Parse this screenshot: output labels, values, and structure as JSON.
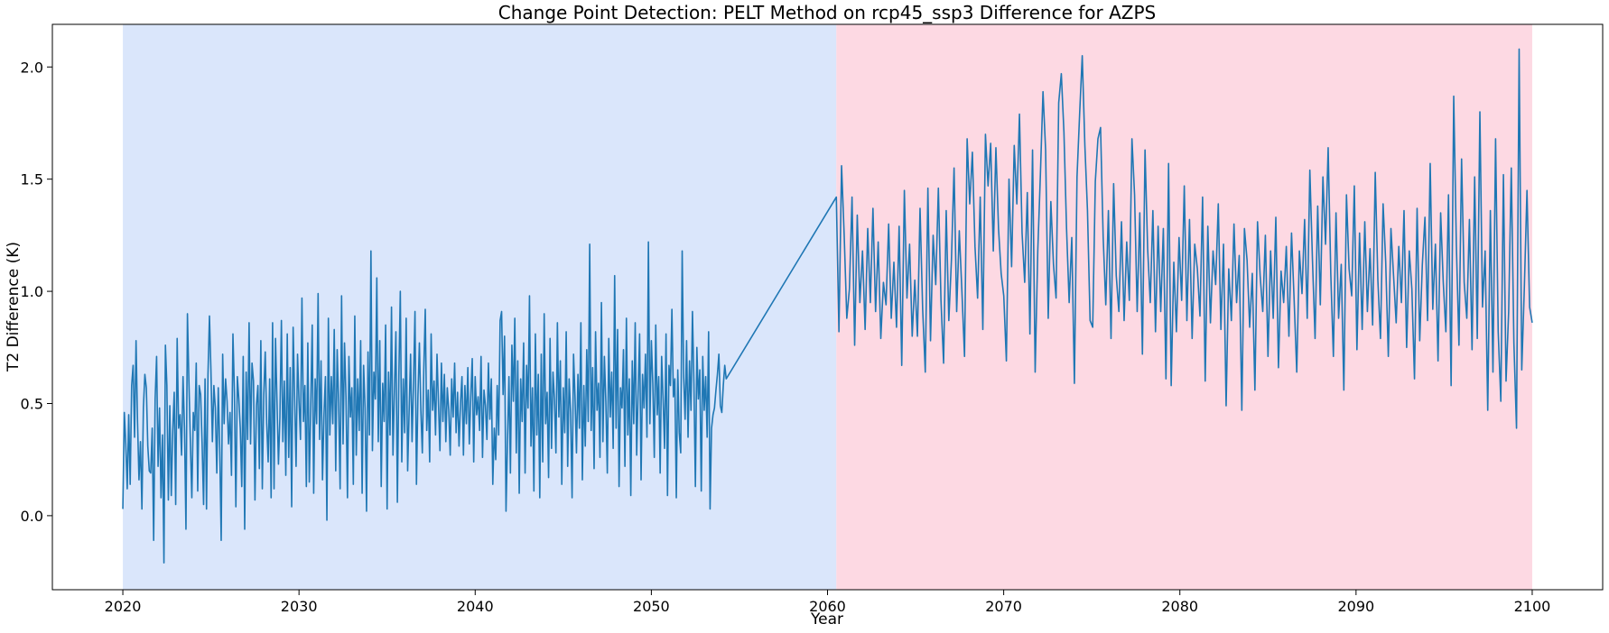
{
  "chart_data": {
    "type": "line",
    "title": "Change Point Detection: PELT Method on rcp45_ssp3 Difference for AZPS",
    "xlabel": "Year",
    "ylabel": "T2 Difference (K)",
    "xlim": [
      2016.0,
      2104.0
    ],
    "ylim": [
      -0.33,
      2.19
    ],
    "x_ticks": [
      2020,
      2030,
      2040,
      2050,
      2060,
      2070,
      2080,
      2090,
      2100
    ],
    "y_ticks": [
      0.0,
      0.5,
      1.0,
      1.5,
      2.0
    ],
    "y_tick_labels": [
      "0.0",
      "0.5",
      "1.0",
      "1.5",
      "2.0"
    ],
    "grid": false,
    "regions": [
      {
        "x_start": 2020.0,
        "x_end": 2060.5,
        "color": "#dae6fb"
      },
      {
        "x_start": 2060.5,
        "x_end": 2100.0,
        "color": "#fdd9e3"
      }
    ],
    "series": [
      {
        "color": "#1f77b4",
        "x_start": 2020.0,
        "x_step": 0.0833333,
        "values": [
          0.03,
          0.46,
          0.32,
          0.12,
          0.45,
          0.14,
          0.58,
          0.67,
          0.35,
          0.78,
          0.42,
          0.16,
          0.33,
          0.03,
          0.48,
          0.63,
          0.57,
          0.31,
          0.2,
          0.19,
          0.39,
          -0.11,
          0.52,
          0.71,
          0.22,
          0.48,
          0.08,
          0.36,
          -0.21,
          0.76,
          0.58,
          0.07,
          0.49,
          0.09,
          0.38,
          0.55,
          0.05,
          0.79,
          0.39,
          0.45,
          0.27,
          0.62,
          0.39,
          -0.06,
          0.9,
          0.6,
          0.33,
          0.08,
          0.46,
          0.38,
          0.68,
          0.11,
          0.58,
          0.54,
          0.32,
          0.05,
          0.61,
          0.03,
          0.63,
          0.89,
          0.65,
          0.33,
          0.58,
          0.48,
          0.19,
          0.57,
          0.3,
          -0.11,
          0.72,
          0.41,
          0.61,
          0.51,
          0.32,
          0.46,
          0.18,
          0.81,
          0.55,
          0.04,
          0.62,
          0.52,
          0.39,
          0.13,
          0.71,
          -0.06,
          0.64,
          0.34,
          0.86,
          0.32,
          0.68,
          0.6,
          0.07,
          0.49,
          0.58,
          0.21,
          0.78,
          0.12,
          0.54,
          0.73,
          0.41,
          0.24,
          0.61,
          0.08,
          0.86,
          0.12,
          0.79,
          0.51,
          0.23,
          0.44,
          0.87,
          0.33,
          0.6,
          0.18,
          0.81,
          0.26,
          0.66,
          0.04,
          0.84,
          0.53,
          0.22,
          0.72,
          0.51,
          0.34,
          0.97,
          0.42,
          0.58,
          0.13,
          0.77,
          0.15,
          0.49,
          0.85,
          0.1,
          0.61,
          0.41,
          0.99,
          0.34,
          0.69,
          0.16,
          0.45,
          0.62,
          -0.02,
          0.88,
          0.36,
          0.62,
          0.41,
          0.83,
          0.2,
          0.74,
          0.5,
          0.12,
          0.98,
          0.32,
          0.77,
          0.53,
          0.08,
          0.71,
          0.44,
          0.57,
          0.14,
          0.89,
          0.27,
          0.61,
          0.38,
          0.78,
          0.1,
          0.67,
          0.48,
          0.02,
          0.73,
          0.36,
          1.18,
          0.29,
          0.64,
          0.52,
          1.06,
          0.33,
          0.78,
          0.13,
          0.59,
          0.42,
          0.85,
          0.03,
          0.64,
          0.36,
          0.93,
          0.27,
          0.56,
          0.82,
          0.06,
          0.62,
          1.0,
          0.24,
          0.61,
          0.37,
          0.88,
          0.2,
          0.46,
          0.72,
          0.33,
          0.59,
          0.91,
          0.14,
          0.53,
          0.77,
          0.47,
          0.28,
          0.65,
          0.92,
          0.38,
          0.56,
          0.24,
          0.81,
          0.47,
          0.6,
          0.36,
          0.72,
          0.5,
          0.29,
          0.68,
          0.42,
          0.63,
          0.33,
          0.57,
          0.47,
          0.27,
          0.61,
          0.44,
          0.68,
          0.37,
          0.55,
          0.31,
          0.5,
          0.62,
          0.27,
          0.58,
          0.41,
          0.66,
          0.32,
          0.53,
          0.7,
          0.24,
          0.62,
          0.45,
          0.53,
          0.38,
          0.71,
          0.26,
          0.56,
          0.49,
          0.34,
          0.68,
          0.43,
          0.61,
          0.14,
          0.39,
          0.25,
          0.58,
          0.36,
          0.87,
          0.91,
          0.54,
          0.8,
          0.02,
          0.33,
          0.62,
          0.19,
          0.76,
          0.51,
          0.88,
          0.28,
          0.69,
          0.1,
          0.61,
          0.42,
          0.77,
          0.19,
          0.67,
          0.48,
          0.98,
          0.31,
          0.57,
          0.11,
          0.81,
          0.36,
          0.63,
          0.08,
          0.72,
          0.24,
          0.9,
          0.41,
          0.55,
          0.17,
          0.79,
          0.3,
          0.64,
          0.52,
          0.28,
          0.86,
          0.44,
          0.69,
          0.14,
          0.57,
          0.37,
          0.82,
          0.22,
          0.61,
          0.46,
          0.08,
          0.72,
          0.53,
          0.28,
          0.63,
          0.39,
          0.86,
          0.16,
          0.58,
          0.31,
          0.74,
          0.42,
          1.21,
          0.38,
          0.66,
          0.21,
          0.82,
          0.47,
          0.59,
          0.26,
          0.95,
          0.33,
          0.71,
          0.51,
          0.19,
          0.79,
          0.44,
          0.64,
          0.3,
          1.07,
          0.39,
          0.83,
          0.13,
          0.57,
          0.48,
          0.74,
          0.22,
          0.88,
          0.36,
          0.61,
          0.09,
          0.69,
          0.41,
          0.86,
          0.27,
          0.55,
          0.81,
          0.16,
          0.63,
          0.48,
          0.72,
          0.35,
          1.22,
          0.41,
          0.78,
          0.59,
          0.26,
          0.85,
          0.45,
          0.62,
          0.19,
          0.71,
          0.52,
          0.3,
          0.81,
          0.09,
          0.67,
          0.58,
          0.92,
          0.53,
          0.61,
          0.08,
          0.65,
          0.37,
          0.28,
          1.18,
          0.62,
          0.43,
          0.78,
          0.35,
          0.69,
          0.47,
          0.91,
          0.59,
          0.13,
          0.75,
          0.52,
          0.65,
          0.11,
          0.71,
          0.47,
          0.62,
          0.35,
          0.82,
          0.03,
          0.39,
          0.45,
          0.48,
          0.56,
          0.63,
          0.72,
          0.49,
          0.46,
          0.58,
          0.67,
          0.61
        ],
        "x2_start": 2060.5,
        "values2": [
          1.42,
          0.82,
          1.56,
          1.25,
          0.88,
          1.01,
          1.42,
          0.76,
          1.34,
          0.95,
          1.18,
          0.83,
          1.28,
          0.95,
          1.37,
          0.91,
          1.22,
          0.79,
          1.04,
          0.94,
          1.3,
          0.88,
          1.13,
          0.84,
          1.29,
          0.67,
          1.45,
          0.97,
          1.21,
          0.8,
          1.05,
          0.8,
          1.37,
          0.92,
          0.64,
          1.46,
          0.78,
          1.25,
          1.03,
          1.46,
          0.96,
          0.68,
          1.36,
          0.87,
          1.14,
          1.55,
          0.91,
          1.27,
          1.0,
          0.71,
          1.68,
          1.39,
          1.62,
          1.2,
          0.97,
          1.42,
          0.83,
          1.7,
          1.47,
          1.66,
          1.18,
          1.64,
          1.28,
          1.08,
          0.98,
          0.69,
          1.5,
          1.11,
          1.65,
          1.39,
          1.79,
          1.26,
          1.04,
          1.44,
          0.81,
          1.63,
          0.64,
          1.18,
          1.52,
          1.89,
          1.63,
          0.88,
          1.4,
          1.12,
          0.97,
          1.84,
          1.97,
          1.71,
          1.28,
          0.95,
          1.24,
          0.59,
          1.51,
          1.79,
          2.05,
          1.65,
          1.36,
          0.87,
          0.84,
          1.49,
          1.68,
          1.73,
          1.24,
          0.94,
          1.36,
          0.79,
          1.48,
          1.07,
          0.91,
          1.31,
          0.87,
          1.22,
          0.96,
          1.68,
          1.43,
          0.91,
          1.35,
          0.72,
          1.63,
          1.19,
          0.95,
          1.36,
          0.82,
          1.29,
          0.91,
          1.28,
          0.61,
          1.57,
          0.58,
          1.13,
          0.82,
          1.24,
          0.96,
          1.47,
          0.87,
          1.32,
          0.79,
          1.21,
          1.1,
          0.89,
          1.42,
          0.6,
          1.29,
          0.86,
          1.18,
          1.03,
          1.39,
          0.83,
          1.21,
          0.49,
          1.1,
          0.87,
          1.3,
          0.95,
          1.16,
          0.47,
          1.28,
          1.14,
          0.84,
          1.08,
          0.56,
          1.31,
          1.07,
          0.91,
          1.25,
          0.71,
          1.18,
          0.88,
          1.33,
          0.66,
          1.09,
          0.95,
          1.2,
          0.8,
          1.26,
          0.96,
          0.64,
          1.18,
          0.99,
          1.32,
          0.88,
          1.54,
          1.14,
          0.79,
          1.38,
          0.94,
          1.51,
          1.21,
          1.64,
          1.08,
          0.71,
          1.35,
          0.88,
          1.12,
          0.56,
          1.43,
          1.1,
          0.98,
          1.47,
          0.74,
          1.26,
          0.83,
          1.31,
          0.91,
          1.19,
          0.85,
          1.53,
          1.05,
          0.79,
          1.39,
          1.13,
          0.71,
          1.28,
          1.07,
          0.86,
          1.2,
          0.95,
          1.36,
          0.75,
          1.18,
          1.01,
          0.61,
          1.37,
          0.78,
          1.12,
          1.33,
          0.87,
          1.57,
          0.92,
          1.21,
          0.69,
          1.35,
          1.04,
          0.82,
          1.43,
          0.58,
          1.87,
          1.21,
          0.76,
          1.59,
          1.04,
          0.88,
          1.32,
          0.74,
          1.51,
          0.79,
          1.8,
          0.93,
          1.18,
          0.47,
          1.36,
          0.64,
          1.68,
          0.82,
          0.51,
          1.52,
          0.6,
          0.91,
          1.55,
          0.77,
          0.39,
          2.08,
          0.65,
          1.02,
          1.45,
          0.93,
          0.86
        ]
      }
    ]
  }
}
